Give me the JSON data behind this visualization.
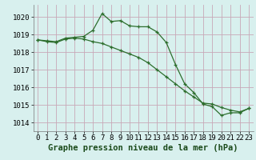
{
  "xlabel": "Graphe pression niveau de la mer (hPa)",
  "background_color": "#d8f0ee",
  "grid_color": "#c8a8b8",
  "line_color": "#2d6e2d",
  "x": [
    0,
    1,
    2,
    3,
    4,
    5,
    6,
    7,
    8,
    9,
    10,
    11,
    12,
    13,
    14,
    15,
    16,
    17,
    18,
    19,
    20,
    21,
    22,
    23
  ],
  "line1": [
    1018.7,
    1018.65,
    1018.6,
    1018.8,
    1018.85,
    1018.9,
    1019.25,
    1020.2,
    1019.75,
    1019.8,
    1019.5,
    1019.45,
    1019.45,
    1019.15,
    1018.55,
    1017.3,
    1016.2,
    1015.7,
    1015.05,
    1014.9,
    1014.4,
    1014.55,
    1014.55,
    1014.8
  ],
  "line2": [
    1018.7,
    1018.6,
    1018.55,
    1018.75,
    1018.8,
    1018.75,
    1018.6,
    1018.5,
    1018.3,
    1018.1,
    1017.9,
    1017.7,
    1017.4,
    1017.0,
    1016.6,
    1016.2,
    1015.8,
    1015.45,
    1015.1,
    1015.05,
    1014.85,
    1014.7,
    1014.6,
    1014.8
  ],
  "ylim": [
    1013.5,
    1020.7
  ],
  "yticks": [
    1014,
    1015,
    1016,
    1017,
    1018,
    1019,
    1020
  ],
  "xticks": [
    0,
    1,
    2,
    3,
    4,
    5,
    6,
    7,
    8,
    9,
    10,
    11,
    12,
    13,
    14,
    15,
    16,
    17,
    18,
    19,
    20,
    21,
    22,
    23
  ],
  "xlabel_fontsize": 7.5,
  "tick_fontsize": 6.5
}
